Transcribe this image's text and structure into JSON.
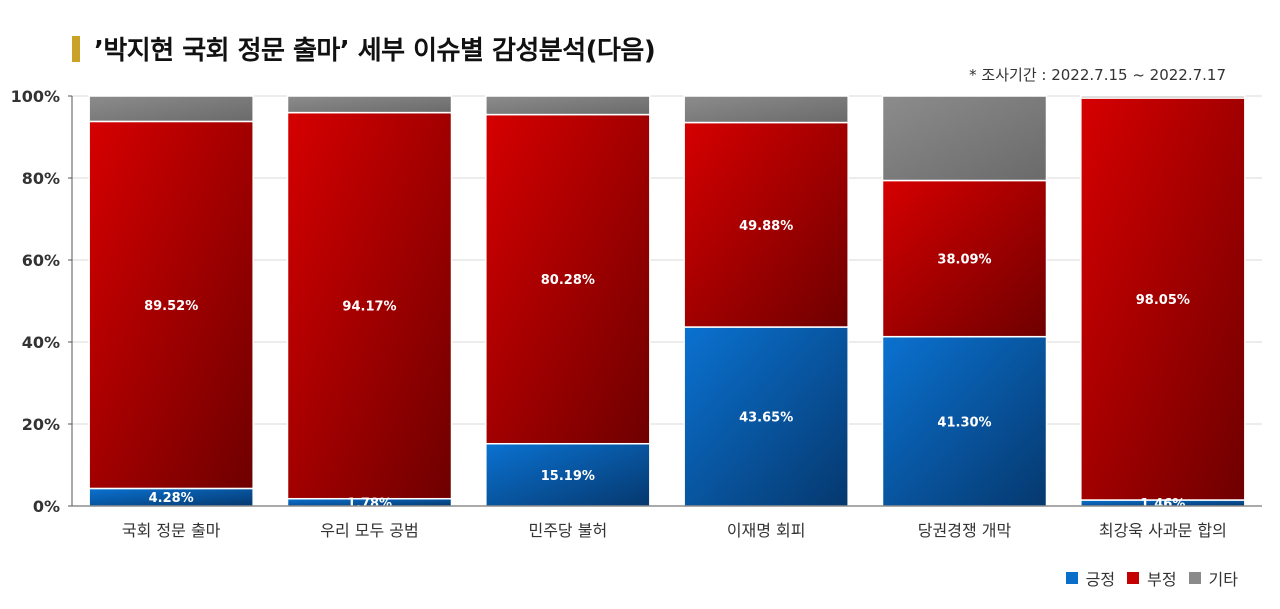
{
  "header": {
    "title": "’박지현 국회 정문 출마’ 세부 이슈별 감성분석(다음)",
    "subtitle": "* 조사기간 : 2022.7.15 ~ 2022.7.17"
  },
  "legend": [
    {
      "label": "긍정",
      "color": "#0a6fc9"
    },
    {
      "label": "부정",
      "color": "#c40000"
    },
    {
      "label": "기타",
      "color": "#8a8a8a"
    }
  ],
  "chart_data": {
    "type": "bar",
    "stacked": true,
    "categories": [
      "국회 정문 출마",
      "우리 모두 공범",
      "민주당 불허",
      "이재명 회피",
      "당권경쟁 개막",
      "최강욱 사과문 합의"
    ],
    "series": [
      {
        "name": "긍정",
        "values": [
          4.28,
          1.78,
          15.19,
          43.65,
          41.3,
          1.46
        ],
        "labels": [
          "4.28%",
          "1.78%",
          "15.19%",
          "43.65%",
          "41.30%",
          "1.46%"
        ]
      },
      {
        "name": "부정",
        "values": [
          89.52,
          94.17,
          80.28,
          49.88,
          38.09,
          98.05
        ],
        "labels": [
          "89.52%",
          "94.17%",
          "80.28%",
          "49.88%",
          "38.09%",
          "98.05%"
        ]
      },
      {
        "name": "기타",
        "values": [
          6.2,
          4.05,
          4.53,
          6.47,
          20.61,
          0.49
        ]
      }
    ],
    "yticks": [
      "0%",
      "20%",
      "40%",
      "60%",
      "80%",
      "100%"
    ],
    "ylim": [
      0,
      100
    ],
    "grid": true,
    "legend_position": "bottom-right"
  }
}
